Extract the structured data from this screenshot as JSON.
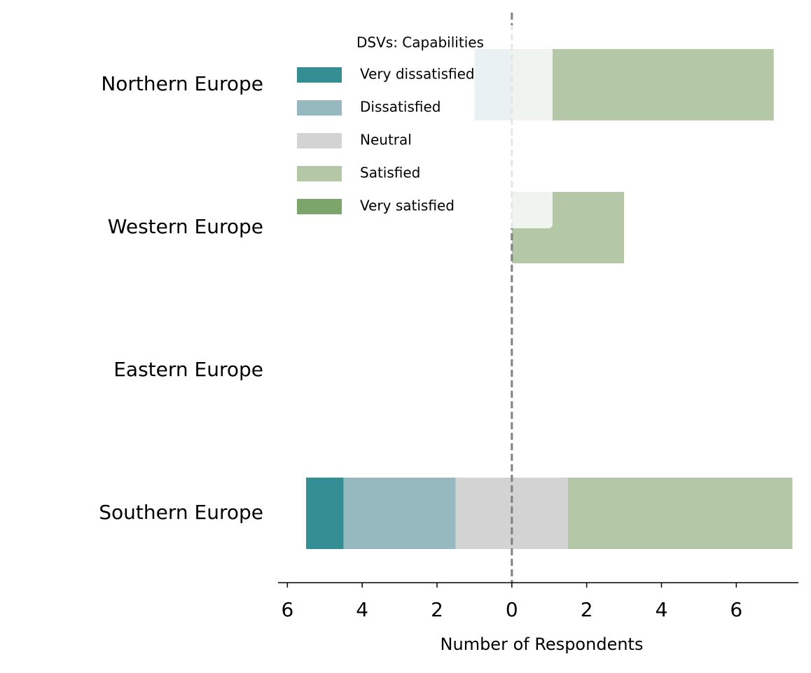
{
  "chart_data": {
    "type": "diverging_bar",
    "categories": [
      "Northern Europe",
      "Western Europe",
      "Eastern Europe",
      "Southern Europe"
    ],
    "series": [
      {
        "name": "Very dissatisfied",
        "color": "#358e93",
        "values": [
          0,
          0,
          0,
          1
        ]
      },
      {
        "name": "Dissatisfied",
        "color": "#95b9bf",
        "values": [
          1,
          0,
          0,
          3
        ]
      },
      {
        "name": "Neutral",
        "color": "#d3d3d3",
        "values": [
          0,
          0,
          0,
          3
        ]
      },
      {
        "name": "Satisfied",
        "color": "#b4c8a8",
        "values": [
          7,
          3,
          0,
          6
        ]
      },
      {
        "name": "Very satisfied",
        "color": "#7ba56a",
        "values": [
          0,
          0,
          0,
          0
        ]
      }
    ],
    "legend_title": "DSVs: Capabilities",
    "xlabel": "Number of Respondents",
    "xlim": [
      -6.25,
      7.66
    ],
    "xticks": [
      {
        "value": -6,
        "label": "6"
      },
      {
        "value": -4,
        "label": "4"
      },
      {
        "value": -2,
        "label": "2"
      },
      0,
      2,
      4,
      6
    ]
  }
}
